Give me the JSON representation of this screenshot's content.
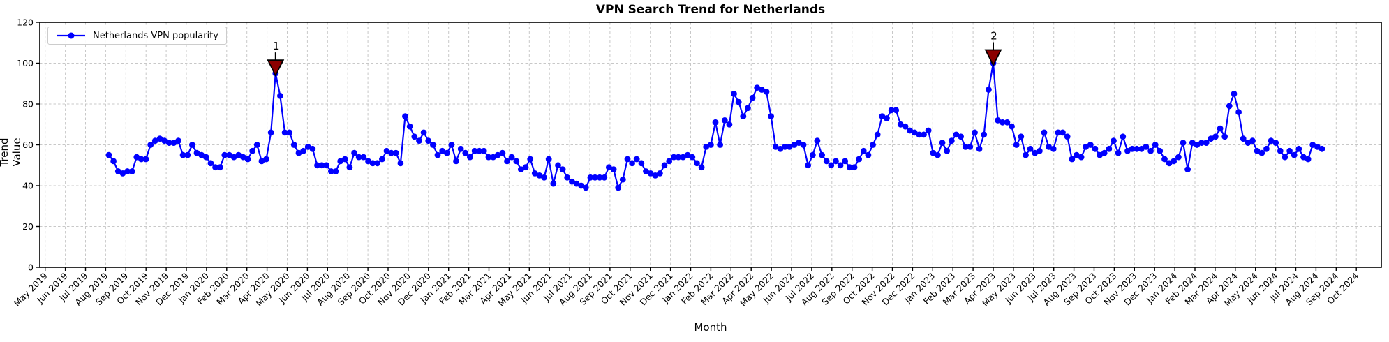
{
  "title": "VPN Search Trend for Netherlands",
  "x_axis_title": "Month",
  "y_axis_title": "Trend Value",
  "legend": {
    "label": "Netherlands VPN popularity"
  },
  "colors": {
    "line": "#0000ff",
    "marker": "#0000ff",
    "annotation": "#8b0000",
    "grid": "#c8c8c8",
    "axis": "#000000",
    "legend_border": "#cccccc",
    "background": "#ffffff"
  },
  "chart_data": {
    "type": "line",
    "title": "VPN Search Trend for Netherlands",
    "xlabel": "Month",
    "ylabel": "Trend Value",
    "ylim": [
      0,
      120
    ],
    "y_ticks": [
      0,
      20,
      40,
      60,
      80,
      100,
      120
    ],
    "grid": true,
    "legend_position": "upper left",
    "x_tick_labels": [
      "May 2019",
      "Jun 2019",
      "Jul 2019",
      "Aug 2019",
      "Sep 2019",
      "Oct 2019",
      "Nov 2019",
      "Dec 2019",
      "Jan 2020",
      "Feb 2020",
      "Mar 2020",
      "Apr 2020",
      "May 2020",
      "Jun 2020",
      "Jul 2020",
      "Aug 2020",
      "Sep 2020",
      "Oct 2020",
      "Nov 2020",
      "Dec 2020",
      "Jan 2021",
      "Feb 2021",
      "Mar 2021",
      "Apr 2021",
      "May 2021",
      "Jun 2021",
      "Jul 2021",
      "Aug 2021",
      "Sep 2021",
      "Oct 2021",
      "Nov 2021",
      "Dec 2021",
      "Jan 2022",
      "Feb 2022",
      "Mar 2022",
      "Apr 2022",
      "May 2022",
      "Jun 2022",
      "Jul 2022",
      "Aug 2022",
      "Sep 2022",
      "Oct 2022",
      "Nov 2022",
      "Dec 2022",
      "Jan 2023",
      "Feb 2023",
      "Mar 2023",
      "Apr 2023",
      "May 2023",
      "Jun 2023",
      "Jul 2023",
      "Aug 2023",
      "Sep 2023",
      "Oct 2023",
      "Nov 2023",
      "Dec 2023",
      "Jan 2024",
      "Feb 2024",
      "Mar 2024",
      "Apr 2024",
      "May 2024",
      "Jun 2024",
      "Jul 2024",
      "Aug 2024",
      "Sep 2024",
      "Oct 2024"
    ],
    "series": [
      {
        "name": "Netherlands VPN popularity",
        "cadence": "weekly",
        "values": [
          55,
          52,
          47,
          46,
          47,
          47,
          54,
          53,
          53,
          60,
          62,
          63,
          62,
          61,
          61,
          62,
          55,
          55,
          60,
          56,
          55,
          54,
          51,
          49,
          49,
          55,
          55,
          54,
          55,
          54,
          53,
          57,
          60,
          52,
          53,
          66,
          95,
          84,
          66,
          66,
          60,
          56,
          57,
          59,
          58,
          50,
          50,
          50,
          47,
          47,
          52,
          53,
          49,
          56,
          54,
          54,
          52,
          51,
          51,
          53,
          57,
          56,
          56,
          51,
          74,
          69,
          64,
          62,
          66,
          62,
          60,
          55,
          57,
          56,
          60,
          52,
          58,
          56,
          54,
          57,
          57,
          57,
          54,
          54,
          55,
          56,
          52,
          54,
          52,
          48,
          49,
          53,
          46,
          45,
          44,
          53,
          41,
          50,
          48,
          44,
          42,
          41,
          40,
          39,
          44,
          44,
          44,
          44,
          49,
          48,
          39,
          43,
          53,
          51,
          53,
          51,
          47,
          46,
          45,
          46,
          50,
          52,
          54,
          54,
          54,
          55,
          54,
          51,
          49,
          59,
          60,
          71,
          60,
          72,
          70,
          85,
          81,
          74,
          78,
          83,
          88,
          87,
          86,
          74,
          59,
          58,
          59,
          59,
          60,
          61,
          60,
          50,
          55,
          62,
          55,
          52,
          50,
          52,
          50,
          52,
          49,
          49,
          53,
          57,
          55,
          60,
          65,
          74,
          73,
          77,
          77,
          70,
          69,
          67,
          66,
          65,
          65,
          67,
          56,
          55,
          61,
          57,
          62,
          65,
          64,
          59,
          59,
          66,
          58,
          65,
          87,
          100,
          72,
          71,
          71,
          69,
          60,
          64,
          55,
          58,
          56,
          57,
          66,
          59,
          58,
          66,
          66,
          64,
          53,
          55,
          54,
          59,
          60,
          58,
          55,
          56,
          58,
          62,
          56,
          64,
          57,
          58,
          58,
          58,
          59,
          57,
          60,
          57,
          53,
          51,
          52,
          54,
          61,
          48,
          61,
          60,
          61,
          61,
          63,
          64,
          68,
          64,
          79,
          85,
          76,
          63,
          61,
          62,
          57,
          56,
          58,
          62,
          61,
          57,
          54,
          57,
          55,
          58,
          54,
          53,
          60,
          59,
          58
        ]
      }
    ],
    "annotations": [
      {
        "label": "1",
        "point_index": 36,
        "value": 95
      },
      {
        "label": "2",
        "point_index": 191,
        "value": 100
      }
    ]
  }
}
